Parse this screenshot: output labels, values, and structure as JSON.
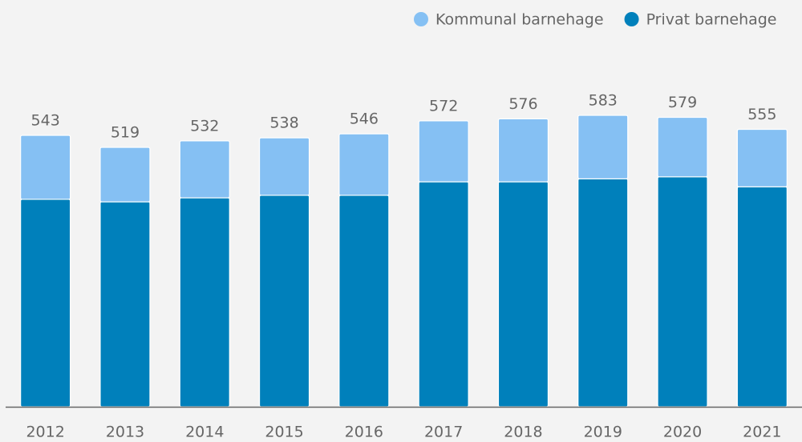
{
  "chart_data": {
    "type": "stacked_bar",
    "categories": [
      "2012",
      "2013",
      "2014",
      "2015",
      "2016",
      "2017",
      "2018",
      "2019",
      "2020",
      "2021"
    ],
    "series": [
      {
        "name": "Privat barnehage",
        "color": "#0080bb",
        "values": [
          415,
          410,
          418,
          423,
          423,
          450,
          450,
          456,
          460,
          440
        ]
      },
      {
        "name": "Kommunal barnehage",
        "color": "#85c0f3",
        "values": [
          128,
          109,
          114,
          115,
          123,
          122,
          126,
          127,
          119,
          115
        ]
      }
    ],
    "totals": [
      543,
      519,
      532,
      538,
      546,
      572,
      576,
      583,
      579,
      555
    ],
    "ylim": [
      0,
      700
    ]
  }
}
